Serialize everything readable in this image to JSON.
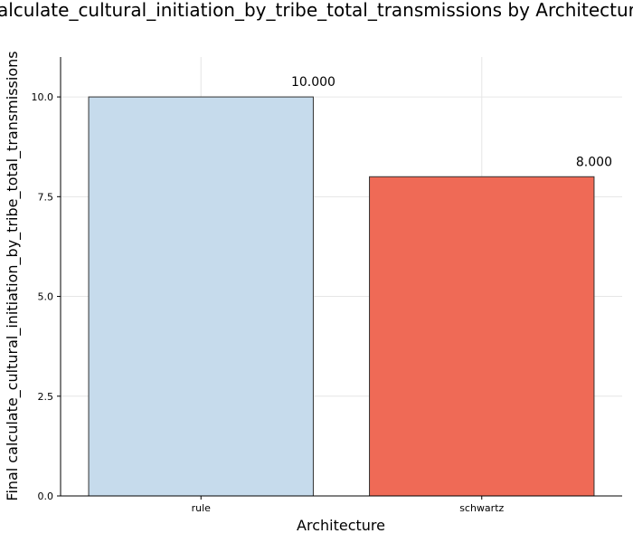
{
  "chart_data": {
    "type": "bar",
    "title": "calculate_cultural_initiation_by_tribe_total_transmissions by Architecture",
    "xlabel": "Architecture",
    "ylabel": "Final calculate_cultural_initiation_by_tribe_total_transmissions",
    "categories": [
      "rule",
      "schwartz"
    ],
    "values": [
      10.0,
      8.0
    ],
    "data_labels": [
      "10.000",
      "8.000"
    ],
    "bar_colors": [
      "#c6dbec",
      "#ef6a56"
    ],
    "ylim": [
      0,
      11
    ],
    "yticks": [
      0,
      2.5,
      5,
      7.5,
      10
    ],
    "ytick_labels": [
      "0.0",
      "2.5",
      "5.0",
      "7.5",
      "10.0"
    ],
    "grid": true,
    "legend": false
  }
}
